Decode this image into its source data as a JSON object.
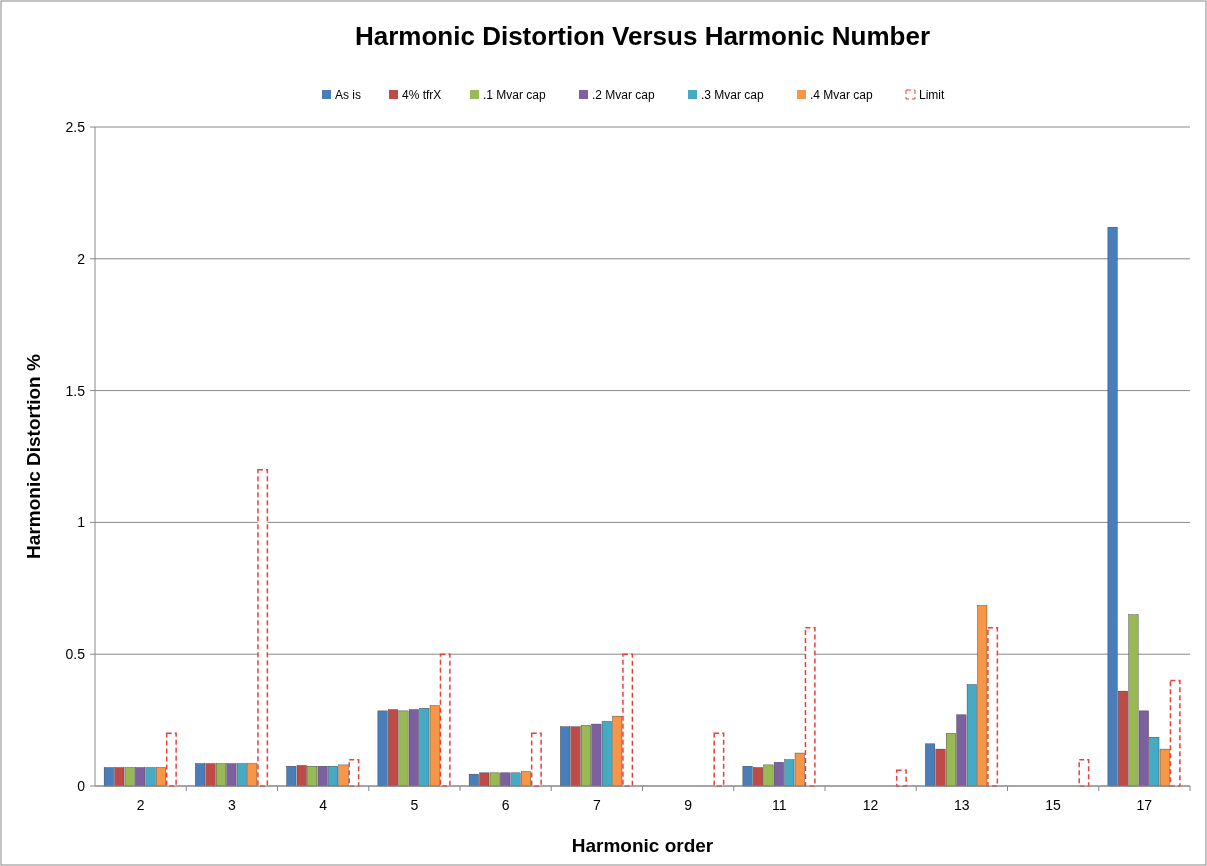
{
  "chart_data": {
    "type": "bar",
    "title": "Harmonic Distortion  Versus Harmonic  Number",
    "xlabel": "Harmonic order",
    "ylabel": "Harmonic Distortion %",
    "categories": [
      "2",
      "3",
      "4",
      "5",
      "6",
      "7",
      "9",
      "11",
      "12",
      "13",
      "15",
      "17"
    ],
    "series": [
      {
        "name": "As is",
        "color": "#4a7ebb",
        "values": [
          0.07,
          0.085,
          0.075,
          0.285,
          0.045,
          0.225,
          null,
          0.075,
          null,
          0.16,
          null,
          2.12
        ]
      },
      {
        "name": "4% tfrX",
        "color": "#be4b48",
        "values": [
          0.07,
          0.085,
          0.078,
          0.29,
          0.05,
          0.225,
          null,
          0.07,
          null,
          0.14,
          null,
          0.36
        ]
      },
      {
        "name": ".1 Mvar cap",
        "color": "#98b954",
        "values": [
          0.07,
          0.085,
          0.075,
          0.285,
          0.05,
          0.23,
          null,
          0.08,
          null,
          0.2,
          null,
          0.65
        ]
      },
      {
        "name": ".2 Mvar cap",
        "color": "#7d60a0",
        "values": [
          0.07,
          0.085,
          0.075,
          0.29,
          0.05,
          0.235,
          null,
          0.09,
          null,
          0.27,
          null,
          0.285
        ]
      },
      {
        "name": ".3 Mvar cap",
        "color": "#46aac5",
        "values": [
          0.07,
          0.085,
          0.075,
          0.295,
          0.05,
          0.245,
          null,
          0.1,
          null,
          0.385,
          null,
          0.185
        ]
      },
      {
        "name": ".4 Mvar cap",
        "color": "#f79646",
        "values": [
          0.07,
          0.085,
          0.08,
          0.305,
          0.055,
          0.265,
          null,
          0.125,
          null,
          0.685,
          null,
          0.14
        ]
      },
      {
        "name": "Limit",
        "color": "#e8413c",
        "line_style": "dashed",
        "values": [
          0.2,
          1.2,
          0.1,
          0.5,
          0.2,
          0.5,
          0.2,
          0.6,
          0.06,
          0.6,
          0.1,
          0.4
        ]
      }
    ],
    "ylim": [
      0,
      2.5
    ],
    "yticks": [
      0,
      0.5,
      1,
      1.5,
      2,
      2.5
    ],
    "grid": "y",
    "legend": "top"
  }
}
